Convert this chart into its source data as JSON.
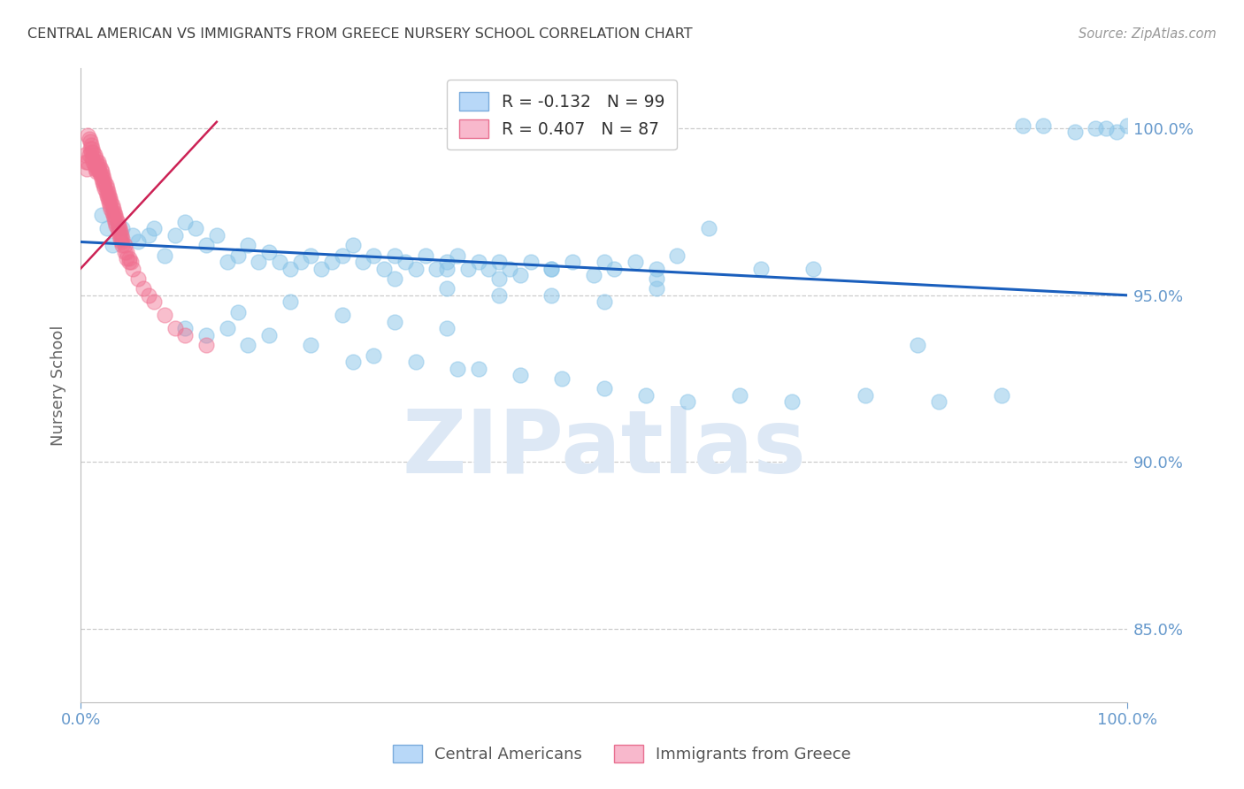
{
  "title": "CENTRAL AMERICAN VS IMMIGRANTS FROM GREECE NURSERY SCHOOL CORRELATION CHART",
  "source": "Source: ZipAtlas.com",
  "ylabel": "Nursery School",
  "x_tick_labels": [
    "0.0%",
    "100.0%"
  ],
  "y_tick_values": [
    0.85,
    0.9,
    0.95,
    1.0
  ],
  "x_lim": [
    0.0,
    1.0
  ],
  "y_lim": [
    0.828,
    1.018
  ],
  "legend_label1": "Central Americans",
  "legend_label2": "Immigrants from Greece",
  "blue_color": "#89c4e8",
  "pink_color": "#f07090",
  "trend_blue_color": "#1a5fbd",
  "trend_pink_color": "#cc2255",
  "grid_color": "#cccccc",
  "watermark": "ZIPatlas",
  "watermark_color": "#dde8f5",
  "background_color": "#ffffff",
  "title_color": "#404040",
  "axis_label_color": "#6699cc",
  "legend_r1": "R = -0.132",
  "legend_n1": "N = 99",
  "legend_r2": "R = 0.407",
  "legend_n2": "N = 87",
  "blue_scatter_x": [
    0.02,
    0.025,
    0.03,
    0.04,
    0.05,
    0.055,
    0.065,
    0.07,
    0.08,
    0.09,
    0.1,
    0.11,
    0.12,
    0.13,
    0.14,
    0.15,
    0.16,
    0.17,
    0.18,
    0.19,
    0.2,
    0.21,
    0.22,
    0.23,
    0.24,
    0.25,
    0.26,
    0.27,
    0.28,
    0.29,
    0.3,
    0.31,
    0.32,
    0.33,
    0.34,
    0.35,
    0.36,
    0.37,
    0.38,
    0.39,
    0.4,
    0.41,
    0.42,
    0.43,
    0.45,
    0.47,
    0.49,
    0.51,
    0.53,
    0.55,
    0.57,
    0.6,
    0.65,
    0.7,
    0.8,
    0.35,
    0.4,
    0.45,
    0.5,
    0.55,
    0.15,
    0.2,
    0.25,
    0.3,
    0.35,
    0.1,
    0.12,
    0.14,
    0.16,
    0.18,
    0.22,
    0.26,
    0.28,
    0.32,
    0.36,
    0.38,
    0.42,
    0.46,
    0.5,
    0.54,
    0.58,
    0.63,
    0.68,
    0.75,
    0.82,
    0.88,
    0.9,
    0.92,
    0.95,
    0.98,
    1.0,
    0.99,
    0.97,
    0.3,
    0.35,
    0.4,
    0.45,
    0.5,
    0.55
  ],
  "blue_scatter_y": [
    0.974,
    0.97,
    0.965,
    0.97,
    0.968,
    0.966,
    0.968,
    0.97,
    0.962,
    0.968,
    0.972,
    0.97,
    0.965,
    0.968,
    0.96,
    0.962,
    0.965,
    0.96,
    0.963,
    0.96,
    0.958,
    0.96,
    0.962,
    0.958,
    0.96,
    0.962,
    0.965,
    0.96,
    0.962,
    0.958,
    0.962,
    0.96,
    0.958,
    0.962,
    0.958,
    0.96,
    0.962,
    0.958,
    0.96,
    0.958,
    0.96,
    0.958,
    0.956,
    0.96,
    0.958,
    0.96,
    0.956,
    0.958,
    0.96,
    0.958,
    0.962,
    0.97,
    0.958,
    0.958,
    0.935,
    0.958,
    0.955,
    0.958,
    0.96,
    0.955,
    0.945,
    0.948,
    0.944,
    0.942,
    0.94,
    0.94,
    0.938,
    0.94,
    0.935,
    0.938,
    0.935,
    0.93,
    0.932,
    0.93,
    0.928,
    0.928,
    0.926,
    0.925,
    0.922,
    0.92,
    0.918,
    0.92,
    0.918,
    0.92,
    0.918,
    0.92,
    1.001,
    1.001,
    0.999,
    1.0,
    1.001,
    0.999,
    1.0,
    0.955,
    0.952,
    0.95,
    0.95,
    0.948,
    0.952
  ],
  "pink_scatter_x": [
    0.004,
    0.005,
    0.006,
    0.007,
    0.008,
    0.009,
    0.01,
    0.011,
    0.012,
    0.013,
    0.014,
    0.015,
    0.016,
    0.017,
    0.018,
    0.019,
    0.02,
    0.021,
    0.022,
    0.023,
    0.024,
    0.025,
    0.026,
    0.027,
    0.028,
    0.029,
    0.03,
    0.031,
    0.032,
    0.033,
    0.034,
    0.035,
    0.036,
    0.037,
    0.038,
    0.039,
    0.04,
    0.042,
    0.044,
    0.046,
    0.048,
    0.05,
    0.055,
    0.06,
    0.065,
    0.07,
    0.08,
    0.09,
    0.1,
    0.12,
    0.007,
    0.008,
    0.009,
    0.01,
    0.011,
    0.012,
    0.013,
    0.014,
    0.015,
    0.016,
    0.017,
    0.018,
    0.019,
    0.02,
    0.021,
    0.022,
    0.023,
    0.024,
    0.025,
    0.026,
    0.027,
    0.028,
    0.029,
    0.03,
    0.031,
    0.032,
    0.033,
    0.034,
    0.035,
    0.036,
    0.037,
    0.038,
    0.039,
    0.04,
    0.042,
    0.044,
    0.046
  ],
  "pink_scatter_y": [
    0.992,
    0.99,
    0.988,
    0.99,
    0.992,
    0.994,
    0.993,
    0.991,
    0.99,
    0.989,
    0.988,
    0.987,
    0.988,
    0.99,
    0.989,
    0.988,
    0.987,
    0.986,
    0.985,
    0.984,
    0.983,
    0.982,
    0.981,
    0.98,
    0.979,
    0.978,
    0.977,
    0.976,
    0.975,
    0.974,
    0.973,
    0.972,
    0.971,
    0.97,
    0.969,
    0.968,
    0.967,
    0.965,
    0.963,
    0.961,
    0.96,
    0.958,
    0.955,
    0.952,
    0.95,
    0.948,
    0.944,
    0.94,
    0.938,
    0.935,
    0.998,
    0.997,
    0.996,
    0.995,
    0.994,
    0.993,
    0.992,
    0.991,
    0.99,
    0.989,
    0.988,
    0.987,
    0.986,
    0.985,
    0.984,
    0.983,
    0.982,
    0.981,
    0.98,
    0.979,
    0.978,
    0.977,
    0.976,
    0.975,
    0.974,
    0.973,
    0.972,
    0.971,
    0.97,
    0.969,
    0.968,
    0.967,
    0.966,
    0.965,
    0.963,
    0.961,
    0.96
  ],
  "blue_trend_x": [
    0.0,
    1.0
  ],
  "blue_trend_y": [
    0.966,
    0.95
  ],
  "pink_trend_x": [
    0.0,
    0.13
  ],
  "pink_trend_y": [
    0.958,
    1.002
  ]
}
